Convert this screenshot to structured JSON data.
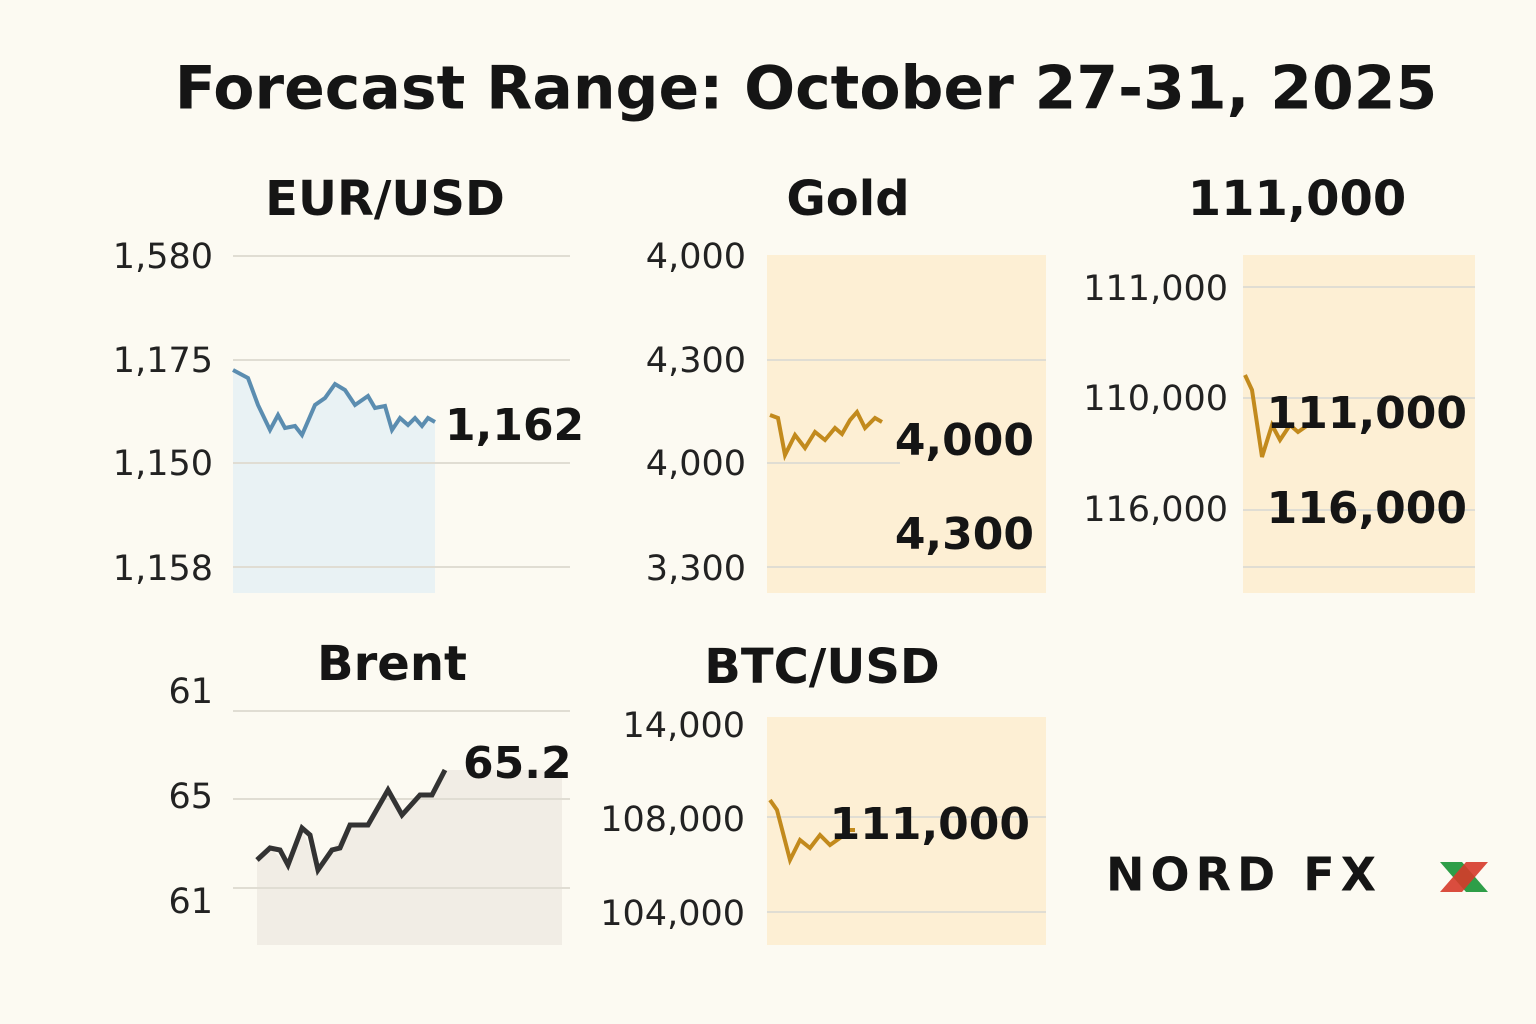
{
  "header": {
    "title": "Forecast Range: October 27-31, 2025"
  },
  "panels": [
    {
      "title": "EUR/USD",
      "axis_labels": [
        "1,580",
        "1,175",
        "1,150",
        "1,158"
      ],
      "callouts": [
        "1,162"
      ]
    },
    {
      "title": "Gold",
      "axis_labels": [
        "4,000",
        "4,300",
        "4,000",
        "3,300"
      ],
      "callouts": [
        "4,000",
        "4,300"
      ]
    },
    {
      "title": "111,000",
      "axis_labels": [
        "111,000",
        "110,000",
        "116,000"
      ],
      "callouts": [
        "111,000",
        "116,000"
      ]
    },
    {
      "title": "Brent",
      "axis_labels": [
        "61",
        "65",
        "61"
      ],
      "callouts": [
        "65.2"
      ]
    },
    {
      "title": "BTC/USD",
      "axis_labels": [
        "14,000",
        "108,000",
        "104,000"
      ],
      "callouts": [
        "111,000"
      ]
    }
  ],
  "logo": "NORD FX"
}
